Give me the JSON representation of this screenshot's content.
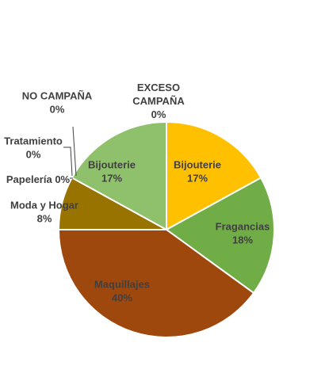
{
  "chart_data": {
    "type": "pie",
    "title": "",
    "slices": [
      {
        "label": "Bijouterie",
        "percent_label": "17%",
        "value": 17,
        "color": "#FFC000"
      },
      {
        "label": "Fragancias",
        "percent_label": "18%",
        "value": 18,
        "color": "#70AD47"
      },
      {
        "label": "Maquillajes",
        "percent_label": "40%",
        "value": 40,
        "color": "#9E480E"
      },
      {
        "label": "Moda y Hogar",
        "percent_label": "8%",
        "value": 8,
        "color": "#997300"
      },
      {
        "label": "Papelería",
        "percent_label": "0%",
        "value": 0,
        "color": "#A5A5A5"
      },
      {
        "label": "Tratamiento",
        "percent_label": "0%",
        "value": 0,
        "color": "#5B9BD5"
      },
      {
        "label": "NO CAMPAÑA",
        "percent_label": "0%",
        "value": 0,
        "color": "#264478"
      },
      {
        "label": "Bijouterie",
        "percent_label": "17%",
        "value": 17,
        "color": "#8FC16C"
      },
      {
        "label": "EXCESO CAMPAÑA",
        "percent_label": "0%",
        "value": 0,
        "color": "#C55A11"
      }
    ],
    "legend": "none",
    "data_labels": true
  }
}
